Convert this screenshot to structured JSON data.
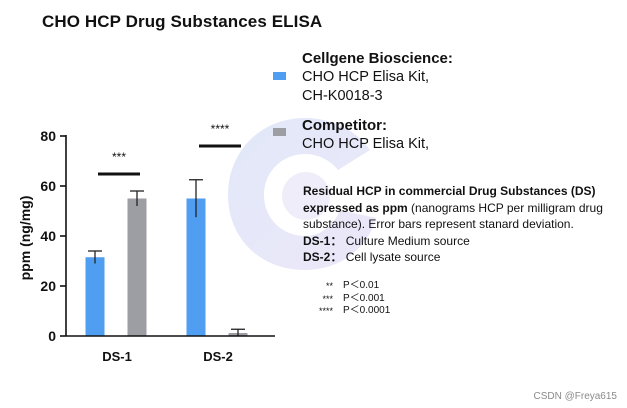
{
  "title": "CHO HCP Drug Substances ELISA",
  "chart_data": {
    "type": "bar",
    "categories": [
      "DS-1",
      "DS-2"
    ],
    "ylabel": "ppm (ng/mg)",
    "xlabel": "",
    "ylim": [
      0,
      80
    ],
    "yticks": [
      0,
      20,
      40,
      60,
      80
    ],
    "series": [
      {
        "name": "Cellgene Bioscience",
        "color": "#4f9ef2",
        "values": [
          31.5,
          55
        ],
        "errors": [
          2.5,
          7.5
        ]
      },
      {
        "name": "Competitor",
        "color": "#9c9ea3",
        "values": [
          55,
          1.2
        ],
        "errors": [
          3,
          1.5
        ]
      }
    ],
    "significance": [
      "***",
      "****"
    ]
  },
  "legend": [
    {
      "head": "Cellgene Bioscience:",
      "lines": [
        "CHO HCP Elisa Kit,",
        "CH-K0018-3"
      ],
      "color": "#4f9ef2"
    },
    {
      "head": "Competitor:",
      "lines": [
        "CHO HCP Elisa Kit,"
      ],
      "color": "#9c9ea3"
    }
  ],
  "note": {
    "bold1": "Residual HCP in commercial Drug Substances (DS) expressed as ppm",
    "plain1": " (nanograms HCP per milligram drug substance). Error bars represent stanard deviation.",
    "ds1_label": "DS-1：",
    "ds1_text": "Culture Medium source",
    "ds2_label": "DS-2：",
    "ds2_text": "Cell lysate source"
  },
  "sig_legend": [
    {
      "stars": "**",
      "text": "P＜0.01"
    },
    {
      "stars": "***",
      "text": "P＜0.001"
    },
    {
      "stars": "****",
      "text": "P＜0.0001"
    }
  ],
  "watermark": "CSDN @Freya615"
}
